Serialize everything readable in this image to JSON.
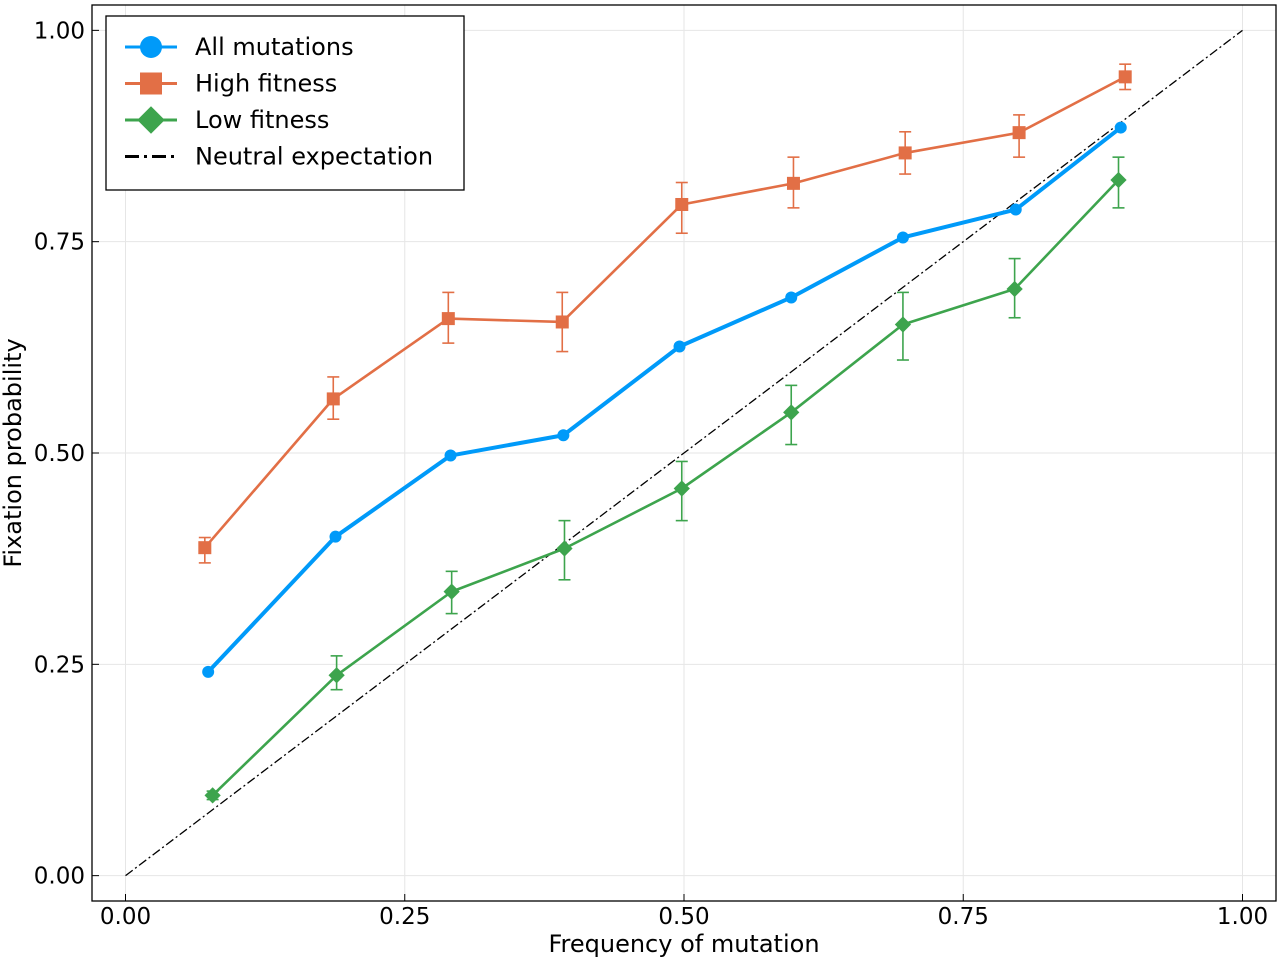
{
  "chart_data": {
    "type": "line",
    "xlabel": "Frequency of mutation",
    "ylabel": "Fixation probability",
    "xlim": [
      -0.03,
      1.03
    ],
    "ylim": [
      -0.03,
      1.03
    ],
    "xticks": [
      "0.00",
      "0.25",
      "0.50",
      "0.75",
      "1.00"
    ],
    "yticks": [
      "0.00",
      "0.25",
      "0.50",
      "0.75",
      "1.00"
    ],
    "grid": true,
    "legend_position": "top-left",
    "series": [
      {
        "name": "All mutations",
        "color": "#009af9",
        "marker": "circle",
        "x": [
          0.074,
          0.188,
          0.291,
          0.392,
          0.496,
          0.596,
          0.696,
          0.797,
          0.891
        ],
        "y": [
          0.241,
          0.401,
          0.497,
          0.521,
          0.626,
          0.684,
          0.755,
          0.788,
          0.885
        ]
      },
      {
        "name": "High fitness",
        "color": "#e26f46",
        "marker": "square",
        "x": [
          0.071,
          0.186,
          0.289,
          0.391,
          0.498,
          0.598,
          0.698,
          0.8,
          0.895
        ],
        "y": [
          0.388,
          0.564,
          0.659,
          0.655,
          0.794,
          0.819,
          0.855,
          0.879,
          0.945
        ],
        "err_low": [
          0.37,
          0.54,
          0.63,
          0.62,
          0.76,
          0.79,
          0.83,
          0.85,
          0.93
        ],
        "err_high": [
          0.4,
          0.59,
          0.69,
          0.69,
          0.82,
          0.85,
          0.88,
          0.9,
          0.96
        ]
      },
      {
        "name": "Low fitness",
        "color": "#3da44d",
        "marker": "diamond",
        "x": [
          0.078,
          0.189,
          0.292,
          0.393,
          0.498,
          0.596,
          0.696,
          0.796,
          0.889
        ],
        "y": [
          0.095,
          0.237,
          0.336,
          0.387,
          0.458,
          0.548,
          0.652,
          0.694,
          0.823
        ],
        "err_low": [
          0.09,
          0.22,
          0.31,
          0.35,
          0.42,
          0.51,
          0.61,
          0.66,
          0.79
        ],
        "err_high": [
          0.1,
          0.26,
          0.36,
          0.42,
          0.49,
          0.58,
          0.69,
          0.73,
          0.85
        ]
      },
      {
        "name": "Neutral expectation",
        "color": "#000000",
        "marker": "none",
        "dash": "dashdot",
        "x": [
          0.0,
          1.0
        ],
        "y": [
          0.0,
          1.0
        ]
      }
    ]
  }
}
